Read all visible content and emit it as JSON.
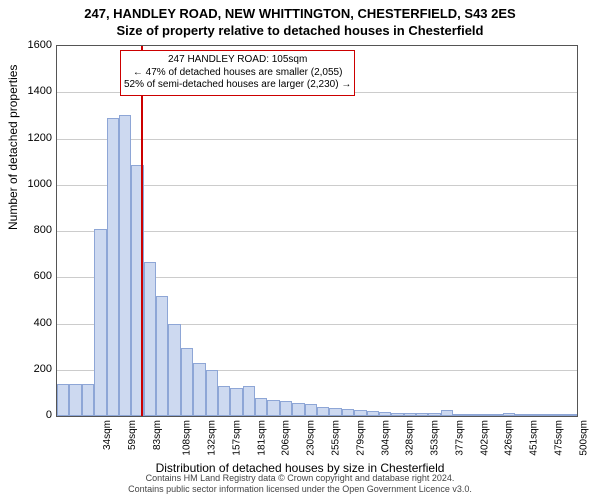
{
  "title_line1": "247, HANDLEY ROAD, NEW WHITTINGTON, CHESTERFIELD, S43 2ES",
  "title_line2": "Size of property relative to detached houses in Chesterfield",
  "yaxis": {
    "title": "Number of detached properties",
    "min": 0,
    "max": 1600,
    "step": 200
  },
  "xaxis": {
    "title": "Distribution of detached houses by size in Chesterfield",
    "label_suffix": "sqm"
  },
  "chart": {
    "type": "histogram",
    "bar_fill": "#cdd9f0",
    "bar_stroke": "#8ea6d6",
    "grid_color": "#cccccc",
    "axis_color": "#555555",
    "background": "#ffffff",
    "ref_line_color": "#c00",
    "bin_start": 22,
    "bin_width": 12.25,
    "n_bins": 42,
    "x_tick_start": 34,
    "x_tick_step": 24.5,
    "x_tick_count": 21,
    "values": [
      140,
      140,
      140,
      810,
      1290,
      1300,
      1085,
      665,
      520,
      400,
      295,
      230,
      200,
      130,
      120,
      130,
      80,
      70,
      65,
      55,
      50,
      40,
      35,
      30,
      25,
      20,
      18,
      15,
      15,
      12,
      12,
      25,
      10,
      8,
      8,
      6,
      15,
      5,
      5,
      5,
      4,
      4
    ],
    "ref_value": 105
  },
  "annotation": {
    "line1": "247 HANDLEY ROAD: 105sqm",
    "line2": "← 47% of detached houses are smaller (2,055)",
    "line3": "52% of semi-detached houses are larger (2,230) →",
    "box_border": "#c00"
  },
  "footer": {
    "line1": "Contains HM Land Registry data © Crown copyright and database right 2024.",
    "line2": "Contains public sector information licensed under the Open Government Licence v3.0."
  },
  "fonts": {
    "title": 13,
    "axis_title": 12,
    "tick": 11,
    "xtick": 10,
    "annotation": 10,
    "footer": 9
  }
}
